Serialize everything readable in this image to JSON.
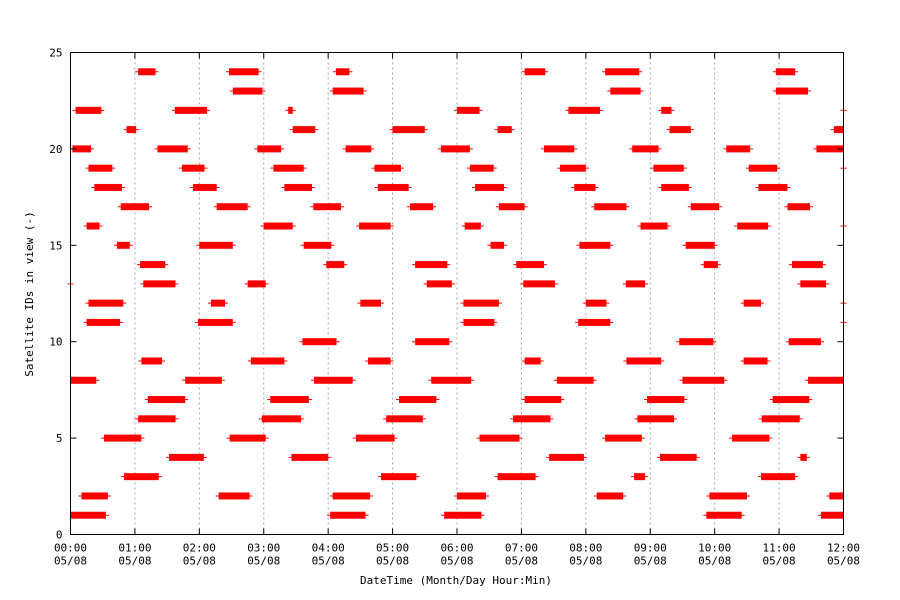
{
  "chart_data": {
    "type": "scatter",
    "title": "",
    "xlabel": "DateTime (Month/Day Hour:Min)",
    "ylabel": "Satellite IDs in view (-)",
    "x_unit": "hours",
    "xlim": [
      0,
      12
    ],
    "ylim": [
      0,
      25
    ],
    "grid": {
      "x": true,
      "y": false
    },
    "y_ticks": [
      "0",
      "5",
      "10",
      "15",
      "20",
      "25"
    ],
    "x_ticks": [
      {
        "time": "00:00",
        "date": "05/08"
      },
      {
        "time": "01:00",
        "date": "05/08"
      },
      {
        "time": "02:00",
        "date": "05/08"
      },
      {
        "time": "03:00",
        "date": "05/08"
      },
      {
        "time": "04:00",
        "date": "05/08"
      },
      {
        "time": "05:00",
        "date": "05/08"
      },
      {
        "time": "06:00",
        "date": "05/08"
      },
      {
        "time": "07:00",
        "date": "05/08"
      },
      {
        "time": "08:00",
        "date": "05/08"
      },
      {
        "time": "09:00",
        "date": "05/08"
      },
      {
        "time": "10:00",
        "date": "05/08"
      },
      {
        "time": "11:00",
        "date": "05/08"
      },
      {
        "time": "12:00",
        "date": "05/08"
      }
    ],
    "color": "#ff0000",
    "series": [
      {
        "sat": 25,
        "intervals": []
      },
      {
        "sat": 24,
        "intervals": [
          [
            1.05,
            1.32
          ],
          [
            2.46,
            2.92
          ],
          [
            4.12,
            4.33
          ],
          [
            7.05,
            7.37
          ],
          [
            8.3,
            8.83
          ],
          [
            10.95,
            11.25
          ]
        ]
      },
      {
        "sat": 23,
        "intervals": [
          [
            2.52,
            2.98
          ],
          [
            4.07,
            4.55
          ],
          [
            8.38,
            8.85
          ],
          [
            10.95,
            11.45
          ]
        ]
      },
      {
        "sat": 22,
        "intervals": [
          [
            0.08,
            0.48
          ],
          [
            1.62,
            2.12
          ],
          [
            3.38,
            3.45
          ],
          [
            6.0,
            6.35
          ],
          [
            7.73,
            8.22
          ],
          [
            9.17,
            9.33
          ],
          [
            12.0,
            12.15
          ]
        ]
      },
      {
        "sat": 21,
        "intervals": [
          [
            0.87,
            1.02
          ],
          [
            3.45,
            3.8
          ],
          [
            5.0,
            5.5
          ],
          [
            6.63,
            6.85
          ],
          [
            9.3,
            9.63
          ],
          [
            11.85,
            12.37
          ]
        ]
      },
      {
        "sat": 20,
        "intervals": [
          [
            0.03,
            0.32
          ],
          [
            1.35,
            1.82
          ],
          [
            2.9,
            3.27
          ],
          [
            4.27,
            4.67
          ],
          [
            5.75,
            6.2
          ],
          [
            7.35,
            7.82
          ],
          [
            8.72,
            9.13
          ],
          [
            10.18,
            10.55
          ],
          [
            11.58,
            12.0
          ]
        ]
      },
      {
        "sat": 19,
        "intervals": [
          [
            0.28,
            0.65
          ],
          [
            1.73,
            2.08
          ],
          [
            3.15,
            3.62
          ],
          [
            4.72,
            5.13
          ],
          [
            6.2,
            6.57
          ],
          [
            7.6,
            8.0
          ],
          [
            9.05,
            9.52
          ],
          [
            10.53,
            10.97
          ],
          [
            12.0,
            12.0
          ]
        ]
      },
      {
        "sat": 18,
        "intervals": [
          [
            0.37,
            0.8
          ],
          [
            1.9,
            2.27
          ],
          [
            3.32,
            3.75
          ],
          [
            4.77,
            5.25
          ],
          [
            6.28,
            6.73
          ],
          [
            7.82,
            8.15
          ],
          [
            9.17,
            9.6
          ],
          [
            10.68,
            11.13
          ]
        ]
      },
      {
        "sat": 17,
        "intervals": [
          [
            0.78,
            1.22
          ],
          [
            2.27,
            2.75
          ],
          [
            3.77,
            4.2
          ],
          [
            5.27,
            5.63
          ],
          [
            6.65,
            7.05
          ],
          [
            8.13,
            8.63
          ],
          [
            9.63,
            10.07
          ],
          [
            11.13,
            11.48
          ]
        ]
      },
      {
        "sat": 16,
        "intervals": [
          [
            0.25,
            0.45
          ],
          [
            3.0,
            3.45
          ],
          [
            4.48,
            4.97
          ],
          [
            6.12,
            6.37
          ],
          [
            8.85,
            9.27
          ],
          [
            10.35,
            10.83
          ],
          [
            12.0,
            12.0
          ]
        ]
      },
      {
        "sat": 15,
        "intervals": [
          [
            0.72,
            0.92
          ],
          [
            2.0,
            2.52
          ],
          [
            3.62,
            4.05
          ],
          [
            6.52,
            6.73
          ],
          [
            7.9,
            8.38
          ],
          [
            9.55,
            10.0
          ]
        ]
      },
      {
        "sat": 14,
        "intervals": [
          [
            1.08,
            1.47
          ],
          [
            3.97,
            4.25
          ],
          [
            5.35,
            5.85
          ],
          [
            6.92,
            7.35
          ],
          [
            9.83,
            10.05
          ],
          [
            11.2,
            11.68
          ]
        ]
      },
      {
        "sat": 13,
        "intervals": [
          [
            -0.05,
            0.05
          ],
          [
            1.13,
            1.63
          ],
          [
            2.75,
            3.03
          ],
          [
            5.53,
            5.92
          ],
          [
            7.03,
            7.52
          ],
          [
            8.62,
            8.92
          ],
          [
            11.33,
            11.73
          ]
        ]
      },
      {
        "sat": 12,
        "intervals": [
          [
            0.28,
            0.82
          ],
          [
            2.18,
            2.4
          ],
          [
            4.5,
            4.82
          ],
          [
            6.1,
            6.65
          ],
          [
            8.0,
            8.32
          ],
          [
            10.45,
            10.72
          ],
          [
            12.0,
            12.0
          ]
        ]
      },
      {
        "sat": 11,
        "intervals": [
          [
            0.25,
            0.77
          ],
          [
            1.98,
            2.52
          ],
          [
            6.1,
            6.58
          ],
          [
            7.88,
            8.38
          ],
          [
            12.0,
            12.0
          ]
        ]
      },
      {
        "sat": 10,
        "intervals": [
          [
            3.6,
            4.13
          ],
          [
            5.35,
            5.88
          ],
          [
            9.45,
            9.98
          ],
          [
            11.15,
            11.65
          ]
        ]
      },
      {
        "sat": 9,
        "intervals": [
          [
            1.1,
            1.42
          ],
          [
            2.8,
            3.32
          ],
          [
            4.62,
            4.97
          ],
          [
            7.05,
            7.3
          ],
          [
            8.63,
            9.17
          ],
          [
            10.45,
            10.82
          ]
        ]
      },
      {
        "sat": 8,
        "intervals": [
          [
            -0.03,
            0.4
          ],
          [
            1.78,
            2.35
          ],
          [
            3.78,
            4.38
          ],
          [
            5.6,
            6.22
          ],
          [
            7.55,
            8.12
          ],
          [
            9.5,
            10.15
          ],
          [
            11.45,
            12.0
          ]
        ]
      },
      {
        "sat": 7,
        "intervals": [
          [
            1.2,
            1.78
          ],
          [
            3.1,
            3.7
          ],
          [
            5.1,
            5.68
          ],
          [
            7.05,
            7.62
          ],
          [
            8.95,
            9.53
          ],
          [
            10.9,
            11.47
          ]
        ]
      },
      {
        "sat": 6,
        "intervals": [
          [
            1.05,
            1.63
          ],
          [
            2.97,
            3.58
          ],
          [
            4.9,
            5.47
          ],
          [
            6.87,
            7.45
          ],
          [
            8.8,
            9.37
          ],
          [
            10.73,
            11.32
          ]
        ]
      },
      {
        "sat": 5,
        "intervals": [
          [
            0.52,
            1.1
          ],
          [
            2.47,
            3.03
          ],
          [
            4.43,
            5.03
          ],
          [
            6.35,
            6.97
          ],
          [
            8.3,
            8.87
          ],
          [
            10.27,
            10.85
          ]
        ]
      },
      {
        "sat": 4,
        "intervals": [
          [
            1.53,
            2.07
          ],
          [
            3.43,
            4.0
          ],
          [
            7.43,
            7.97
          ],
          [
            9.15,
            9.72
          ],
          [
            11.33,
            11.43
          ]
        ]
      },
      {
        "sat": 3,
        "intervals": [
          [
            0.83,
            1.37
          ],
          [
            4.82,
            5.37
          ],
          [
            6.63,
            7.22
          ],
          [
            8.75,
            8.92
          ],
          [
            10.72,
            11.25
          ]
        ]
      },
      {
        "sat": 2,
        "intervals": [
          [
            0.17,
            0.58
          ],
          [
            2.3,
            2.78
          ],
          [
            4.07,
            4.65
          ],
          [
            6.0,
            6.45
          ],
          [
            8.17,
            8.58
          ],
          [
            9.92,
            10.5
          ],
          [
            11.78,
            12.0
          ]
        ]
      },
      {
        "sat": 1,
        "intervals": [
          [
            -0.03,
            0.55
          ],
          [
            4.03,
            4.58
          ],
          [
            5.8,
            6.38
          ],
          [
            9.87,
            10.42
          ],
          [
            11.65,
            12.0
          ]
        ]
      }
    ]
  }
}
